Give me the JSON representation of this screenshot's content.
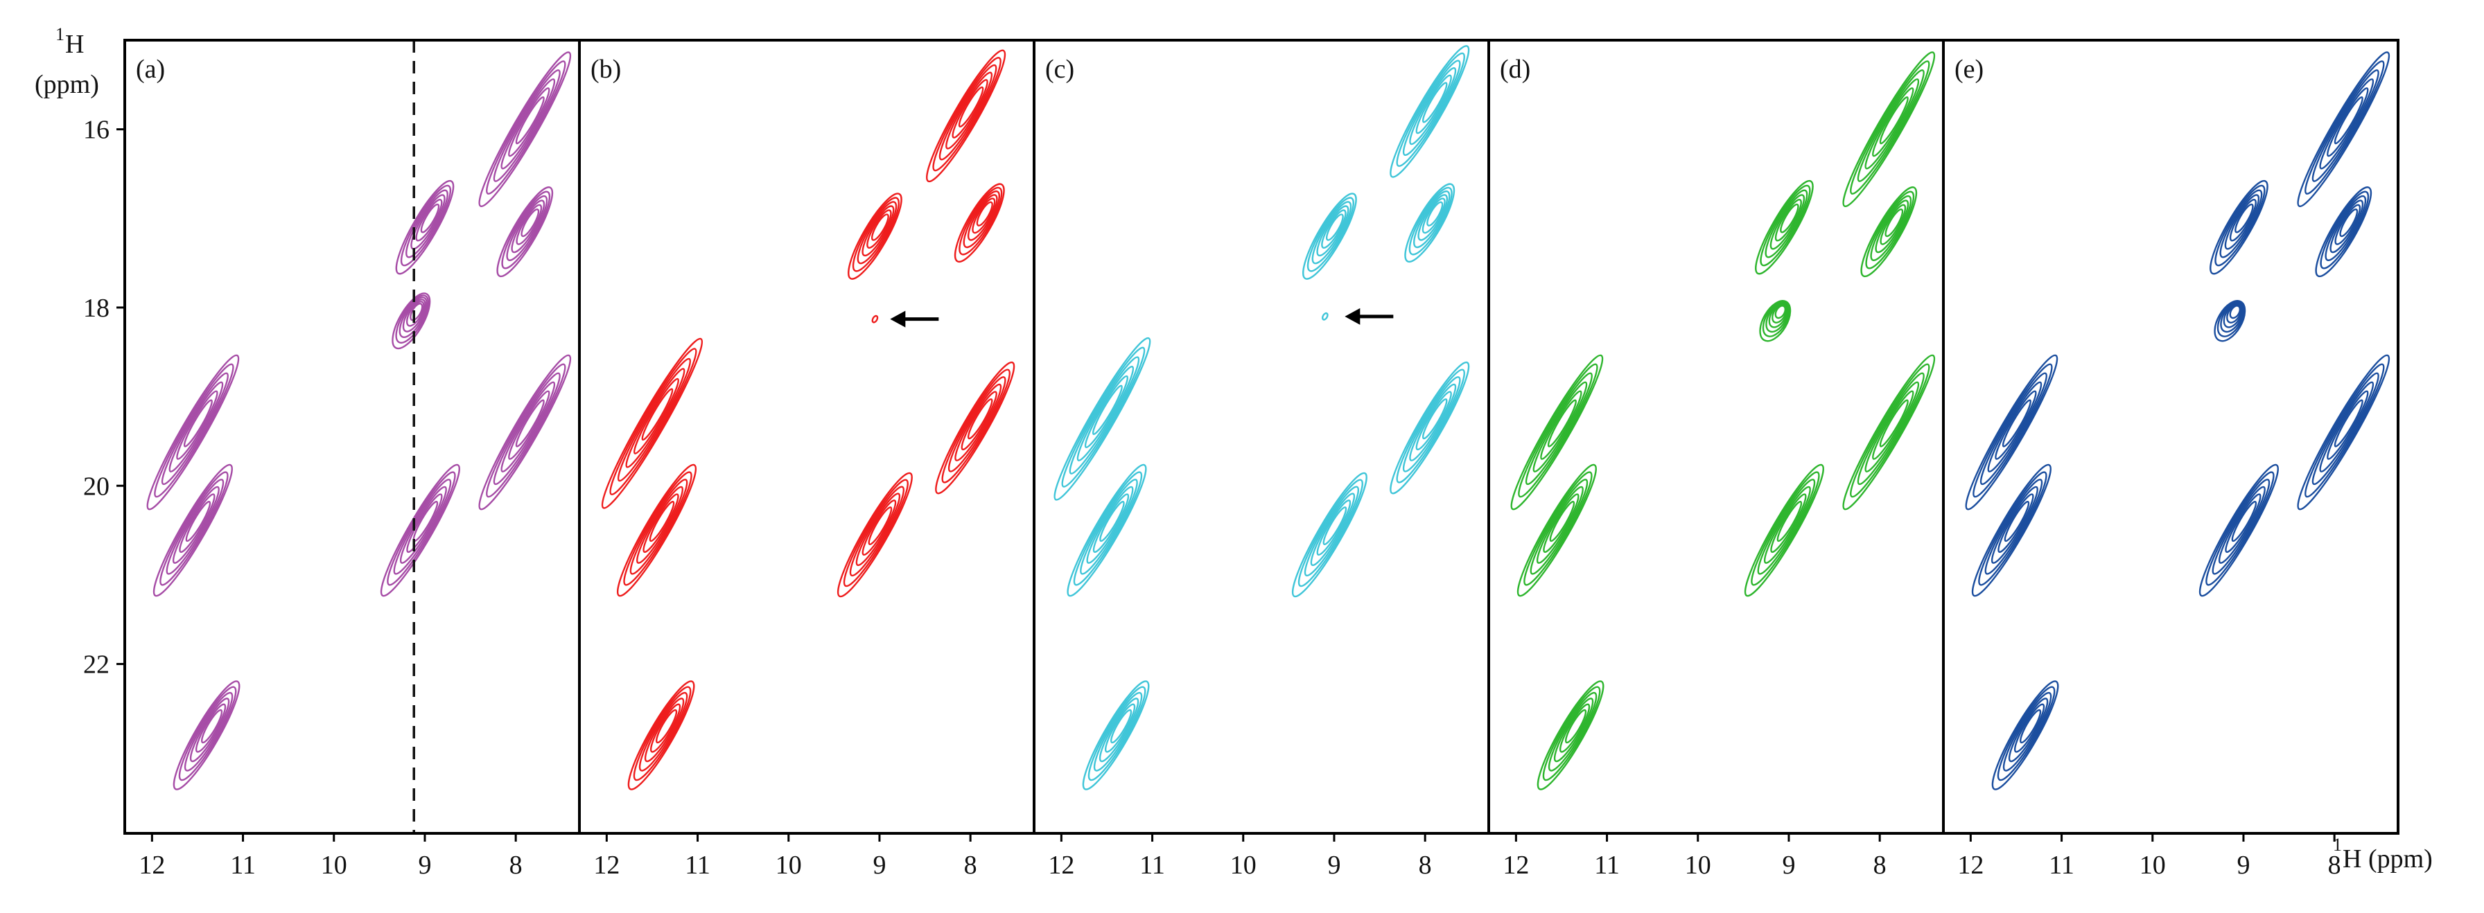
{
  "figure": {
    "y_axis_title_iso": "1",
    "y_axis_title": "H",
    "y_axis_unit": "(ppm)",
    "x_axis_title_iso": "1",
    "x_axis_title": "H (ppm)"
  },
  "chart_data": {
    "type": "contour",
    "xlim": [
      12.3,
      7.3
    ],
    "ylim": [
      15.0,
      23.9
    ],
    "x_ticks": [
      12,
      11,
      10,
      9,
      8
    ],
    "y_ticks": [
      16,
      18,
      20,
      22
    ],
    "y_tick_labels": [
      "16",
      "18",
      "20",
      "22"
    ],
    "x_tick_labels": [
      "12",
      "11",
      "10",
      "9",
      "8"
    ],
    "dashed_line_x": 9.12,
    "panels": [
      {
        "label": "(a)",
        "color": "#a64ca6",
        "peaks": [
          {
            "x": 7.9,
            "y": 16.0,
            "len": 2.0
          },
          {
            "x": 7.9,
            "y": 17.15,
            "len": 1.15
          },
          {
            "x": 9.0,
            "y": 17.1,
            "len": 1.2
          },
          {
            "x": 9.15,
            "y": 18.15,
            "len": 0.7
          },
          {
            "x": 11.55,
            "y": 19.4,
            "len": 2.0
          },
          {
            "x": 7.9,
            "y": 19.4,
            "len": 2.0
          },
          {
            "x": 11.55,
            "y": 20.5,
            "len": 1.7
          },
          {
            "x": 9.05,
            "y": 20.5,
            "len": 1.7
          },
          {
            "x": 11.4,
            "y": 22.8,
            "len": 1.4
          }
        ]
      },
      {
        "label": "(b)",
        "color": "#ee1c1c",
        "arrow_x": 9.02,
        "arrow_y": 18.13,
        "peaks": [
          {
            "x": 8.05,
            "y": 15.85,
            "len": 1.7
          },
          {
            "x": 7.9,
            "y": 17.05,
            "len": 1.0
          },
          {
            "x": 9.05,
            "y": 17.2,
            "len": 1.1
          },
          {
            "x": 9.05,
            "y": 18.13,
            "len": 0.08
          },
          {
            "x": 11.5,
            "y": 19.3,
            "len": 2.2
          },
          {
            "x": 7.95,
            "y": 19.35,
            "len": 1.7
          },
          {
            "x": 11.45,
            "y": 20.5,
            "len": 1.7
          },
          {
            "x": 9.05,
            "y": 20.55,
            "len": 1.6
          },
          {
            "x": 11.4,
            "y": 22.8,
            "len": 1.4
          }
        ]
      },
      {
        "label": "(c)",
        "color": "#3fc5d8",
        "arrow_x": 9.02,
        "arrow_y": 18.1,
        "peaks": [
          {
            "x": 7.95,
            "y": 15.8,
            "len": 1.7
          },
          {
            "x": 7.95,
            "y": 17.05,
            "len": 1.0
          },
          {
            "x": 9.05,
            "y": 17.2,
            "len": 1.1
          },
          {
            "x": 9.1,
            "y": 18.1,
            "len": 0.08
          },
          {
            "x": 11.55,
            "y": 19.25,
            "len": 2.1
          },
          {
            "x": 7.95,
            "y": 19.35,
            "len": 1.7
          },
          {
            "x": 11.5,
            "y": 20.5,
            "len": 1.7
          },
          {
            "x": 9.05,
            "y": 20.55,
            "len": 1.6
          },
          {
            "x": 11.4,
            "y": 22.8,
            "len": 1.4
          }
        ]
      },
      {
        "label": "(d)",
        "color": "#2db52d",
        "peaks": [
          {
            "x": 7.9,
            "y": 16.0,
            "len": 2.0
          },
          {
            "x": 7.9,
            "y": 17.15,
            "len": 1.15
          },
          {
            "x": 9.05,
            "y": 17.1,
            "len": 1.2
          },
          {
            "x": 9.15,
            "y": 18.15,
            "len": 0.5
          },
          {
            "x": 11.55,
            "y": 19.4,
            "len": 2.0
          },
          {
            "x": 7.9,
            "y": 19.4,
            "len": 2.0
          },
          {
            "x": 11.55,
            "y": 20.5,
            "len": 1.7
          },
          {
            "x": 9.05,
            "y": 20.5,
            "len": 1.7
          },
          {
            "x": 11.4,
            "y": 22.8,
            "len": 1.4
          }
        ]
      },
      {
        "label": "(e)",
        "color": "#1a4d9e",
        "peaks": [
          {
            "x": 7.9,
            "y": 16.0,
            "len": 2.0
          },
          {
            "x": 7.9,
            "y": 17.15,
            "len": 1.15
          },
          {
            "x": 9.05,
            "y": 17.1,
            "len": 1.2
          },
          {
            "x": 9.15,
            "y": 18.15,
            "len": 0.5
          },
          {
            "x": 11.55,
            "y": 19.4,
            "len": 2.0
          },
          {
            "x": 7.9,
            "y": 19.4,
            "len": 2.0
          },
          {
            "x": 11.55,
            "y": 20.5,
            "len": 1.7
          },
          {
            "x": 9.05,
            "y": 20.5,
            "len": 1.7
          },
          {
            "x": 11.4,
            "y": 22.8,
            "len": 1.4
          }
        ]
      }
    ]
  }
}
